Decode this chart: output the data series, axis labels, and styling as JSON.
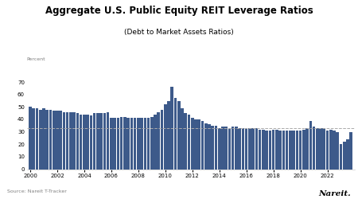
{
  "title": "Aggregate U.S. Public Equity REIT Leverage Ratios",
  "subtitle": "(Debt to Market Assets Ratios)",
  "ylabel": "Percent",
  "source": "Source: Nareit T-Tracker",
  "brand": "Nareit.",
  "reference_line": 33,
  "ylim": [
    0,
    80
  ],
  "yticks": [
    0,
    10,
    20,
    30,
    40,
    50,
    60,
    70
  ],
  "xtick_labels": [
    "2000",
    "2002",
    "2004",
    "2006",
    "2008",
    "2010",
    "2012",
    "2014",
    "2016",
    "2018",
    "2020",
    "2022"
  ],
  "bar_color": "#3D5A8A",
  "ref_line_color": "#aaaaaa",
  "values": [
    50,
    49,
    49,
    48,
    49,
    48,
    48,
    47,
    47,
    47,
    46,
    46,
    46,
    46,
    45,
    44,
    44,
    44,
    43,
    45,
    45,
    45,
    45,
    46,
    41,
    41,
    41,
    42,
    42,
    41,
    41,
    41,
    41,
    41,
    41,
    41,
    42,
    44,
    46,
    48,
    52,
    55,
    66,
    57,
    55,
    49,
    45,
    44,
    41,
    40,
    40,
    39,
    37,
    36,
    35,
    35,
    33,
    34,
    34,
    33,
    34,
    34,
    33,
    33,
    33,
    33,
    33,
    33,
    32,
    32,
    31,
    31,
    32,
    32,
    31,
    31,
    31,
    31,
    31,
    31,
    31,
    32,
    33,
    39,
    34,
    33,
    33,
    33,
    31,
    32,
    31,
    30,
    20,
    22,
    24,
    30
  ]
}
